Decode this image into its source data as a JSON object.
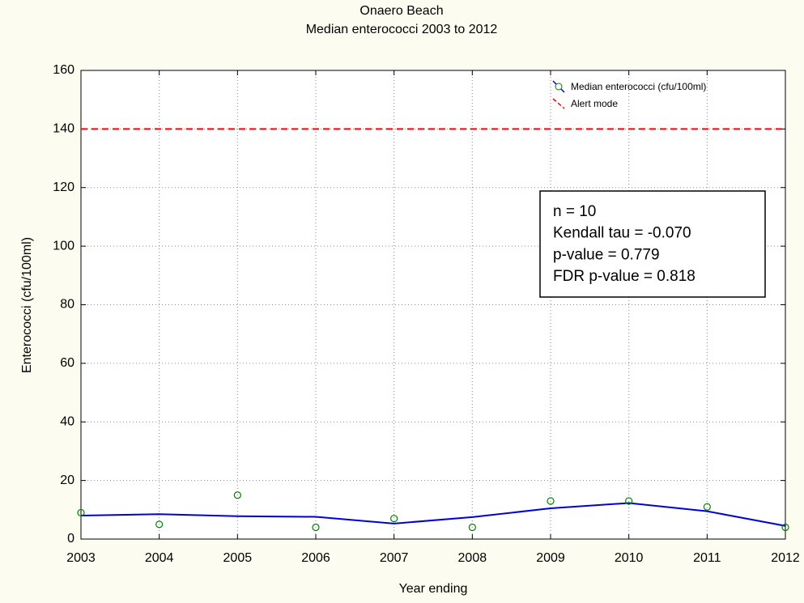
{
  "chart_data": {
    "type": "scatter",
    "title": "Onaero Beach",
    "subtitle": "Median enterococci 2003 to 2012",
    "x_label": "Year ending",
    "y_label": "Enterococci (cfu/100ml)",
    "x": [
      2003,
      2004,
      2005,
      2006,
      2007,
      2008,
      2009,
      2010,
      2011,
      2012
    ],
    "series": [
      {
        "name": "Median enterococci (cfu/100ml)",
        "color": "#0000dd",
        "marker_color": "#008000",
        "values": [
          9,
          5,
          15,
          4,
          7,
          4,
          13,
          13,
          11,
          4
        ],
        "fit": [
          8,
          8.5,
          7.8,
          7.6,
          5.3,
          7.5,
          10.5,
          12.3,
          9.5,
          4.5
        ]
      },
      {
        "name": "Alert mode",
        "color": "#ff0000",
        "dashed": true,
        "value": 140
      }
    ],
    "annotations": [
      "n = 10",
      "Kendall tau = -0.070",
      "p-value = 0.779",
      "FDR p-value = 0.818"
    ],
    "xlim": [
      2003,
      2012
    ],
    "xticks": [
      2003,
      2004,
      2005,
      2006,
      2007,
      2008,
      2009,
      2010,
      2011,
      2012
    ],
    "ylim": [
      0,
      160
    ],
    "yticks": [
      0,
      20,
      40,
      60,
      80,
      100,
      120,
      140,
      160
    ],
    "grid": true,
    "legend": "top-right"
  }
}
